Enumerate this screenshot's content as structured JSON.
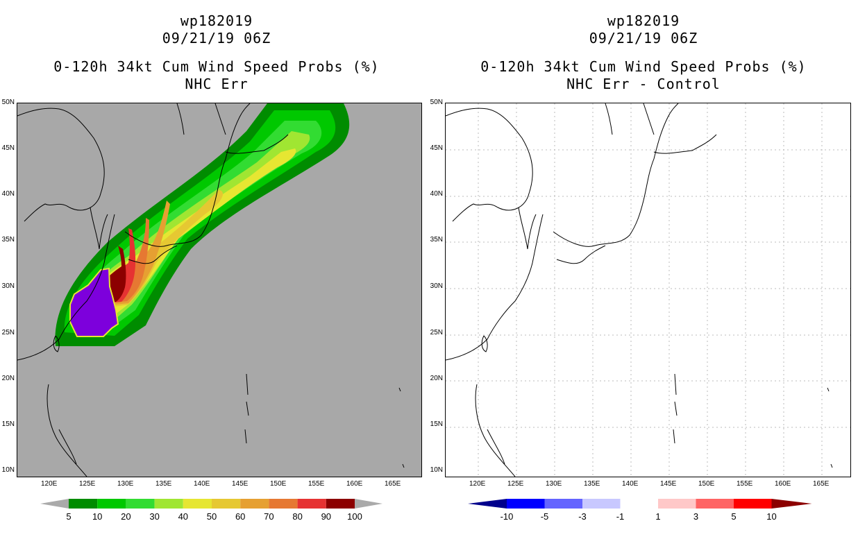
{
  "left_panel": {
    "storm_id": "wp182019",
    "datetime": "09/21/19 06Z",
    "product": "0-120h 34kt Cum Wind Speed Probs (%)",
    "subtitle": "NHC Err",
    "background_color": "#a8a8a8"
  },
  "right_panel": {
    "storm_id": "wp182019",
    "datetime": "09/21/19 06Z",
    "product": "0-120h 34kt Cum Wind Speed Probs (%)",
    "subtitle": "NHC Err - Control",
    "background_color": "#ffffff"
  },
  "axes": {
    "lon_ticks": [
      "120E",
      "125E",
      "130E",
      "135E",
      "140E",
      "145E",
      "150E",
      "155E",
      "160E",
      "165E"
    ],
    "lat_ticks": [
      "50N",
      "45N",
      "40N",
      "35N",
      "30N",
      "25N",
      "20N",
      "15N",
      "10N"
    ]
  },
  "left_colorbar": {
    "labels": [
      "5",
      "10",
      "20",
      "30",
      "40",
      "50",
      "60",
      "70",
      "80",
      "90",
      "100"
    ],
    "colors": [
      "#008c00",
      "#00c800",
      "#32dc32",
      "#a0e632",
      "#e6e632",
      "#e6c832",
      "#e6a032",
      "#e67832",
      "#e63232",
      "#8c0000",
      "#7d00dc",
      "#aaaaaa"
    ]
  },
  "right_colorbar": {
    "labels": [
      "-10",
      "-5",
      "-3",
      "-1",
      "1",
      "3",
      "5",
      "10"
    ],
    "colors": [
      "#00008c",
      "#0000ff",
      "#6464ff",
      "#c8c8ff",
      "#ffffff",
      "#ffc8c8",
      "#ff6464",
      "#ff0000",
      "#8c0000"
    ]
  },
  "probability_colors": {
    "p5": "#008c00",
    "p10": "#00c800",
    "p20": "#32dc32",
    "p30": "#a0e632",
    "p40": "#e6e632",
    "p50": "#e6c832",
    "p60": "#e6a032",
    "p70": "#e67832",
    "p80": "#e63232",
    "p90": "#8c0000",
    "p100": "#7d00dc"
  }
}
